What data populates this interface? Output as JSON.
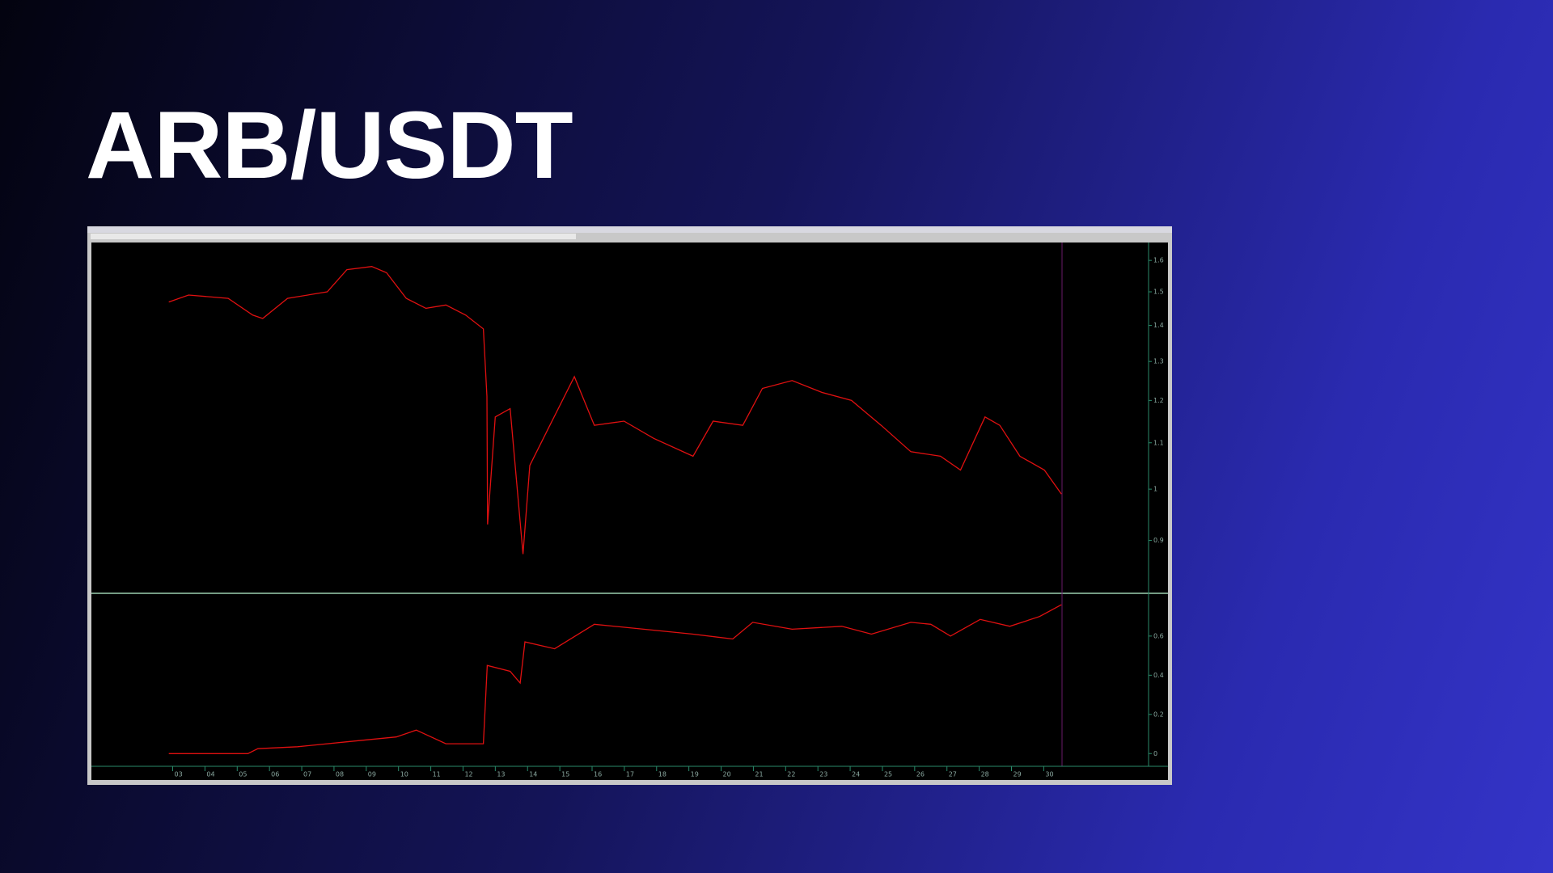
{
  "title": "ARB/USDT",
  "chart_data": [
    {
      "type": "line",
      "log": true,
      "ylim": [
        0.81,
        1.66
      ],
      "yticks": [
        1.6,
        1.5,
        1.4,
        1.3,
        1.2,
        1.1,
        1,
        0.9
      ],
      "xlim": [
        0.48,
        33.25
      ],
      "grid": false,
      "x": [
        2.88,
        3.49,
        4.72,
        5.48,
        5.79,
        6.56,
        7.79,
        8.4,
        9.17,
        9.63,
        10.24,
        10.85,
        11.47,
        12.08,
        12.63,
        12.74,
        12.76,
        13.0,
        13.46,
        13.86,
        14.07,
        14.69,
        15.45,
        16.07,
        16.99,
        17.91,
        19.13,
        19.75,
        20.67,
        21.28,
        22.2,
        23.12,
        24.04,
        24.96,
        25.88,
        26.8,
        27.42,
        28.18,
        28.64,
        29.26,
        30.02,
        30.55
      ],
      "series": [
        {
          "color": "#e01010",
          "values": [
            1.469,
            1.49,
            1.48,
            1.43,
            1.42,
            1.48,
            1.5,
            1.57,
            1.58,
            1.56,
            1.48,
            1.45,
            1.46,
            1.43,
            1.39,
            1.21,
            0.93,
            1.16,
            1.18,
            0.875,
            1.05,
            1.14,
            1.26,
            1.14,
            1.15,
            1.11,
            1.07,
            1.15,
            1.14,
            1.23,
            1.25,
            1.22,
            1.2,
            1.14,
            1.08,
            1.07,
            1.04,
            1.16,
            1.14,
            1.07,
            1.04,
            0.99
          ]
        }
      ]
    },
    {
      "type": "line",
      "ylim": [
        -0.065,
        0.81
      ],
      "yticks": [
        0,
        0.2,
        0.4,
        0.6
      ],
      "xlim": [
        0.48,
        33.25
      ],
      "grid": false,
      "xticks": [
        {
          "value": 3,
          "label": "03"
        },
        {
          "value": 4,
          "label": "04"
        },
        {
          "value": 5,
          "label": "05"
        },
        {
          "value": 6,
          "label": "06"
        },
        {
          "value": 7,
          "label": "07"
        },
        {
          "value": 8,
          "label": "08"
        },
        {
          "value": 9,
          "label": "09"
        },
        10,
        11,
        12,
        13,
        14,
        15,
        16,
        17,
        18,
        19,
        20,
        21,
        22,
        23,
        24,
        25,
        26,
        27,
        28,
        29,
        30
      ],
      "x": [
        2.88,
        5.33,
        5.64,
        6.87,
        8.4,
        9.93,
        10.55,
        11.47,
        12.63,
        12.75,
        13.46,
        13.77,
        13.92,
        14.84,
        16.07,
        17.6,
        19.13,
        20.36,
        20.98,
        22.2,
        23.74,
        24.66,
        25.88,
        26.5,
        27.11,
        28.03,
        28.95,
        29.87,
        30.55
      ],
      "series": [
        {
          "color": "#e01010",
          "values": [
            0,
            0,
            0.025,
            0.035,
            0.06,
            0.085,
            0.12,
            0.05,
            0.05,
            0.45,
            0.42,
            0.36,
            0.57,
            0.535,
            0.66,
            0.635,
            0.61,
            0.585,
            0.67,
            0.635,
            0.65,
            0.61,
            0.67,
            0.66,
            0.6,
            0.685,
            0.65,
            0.7,
            0.76
          ]
        }
      ]
    }
  ]
}
